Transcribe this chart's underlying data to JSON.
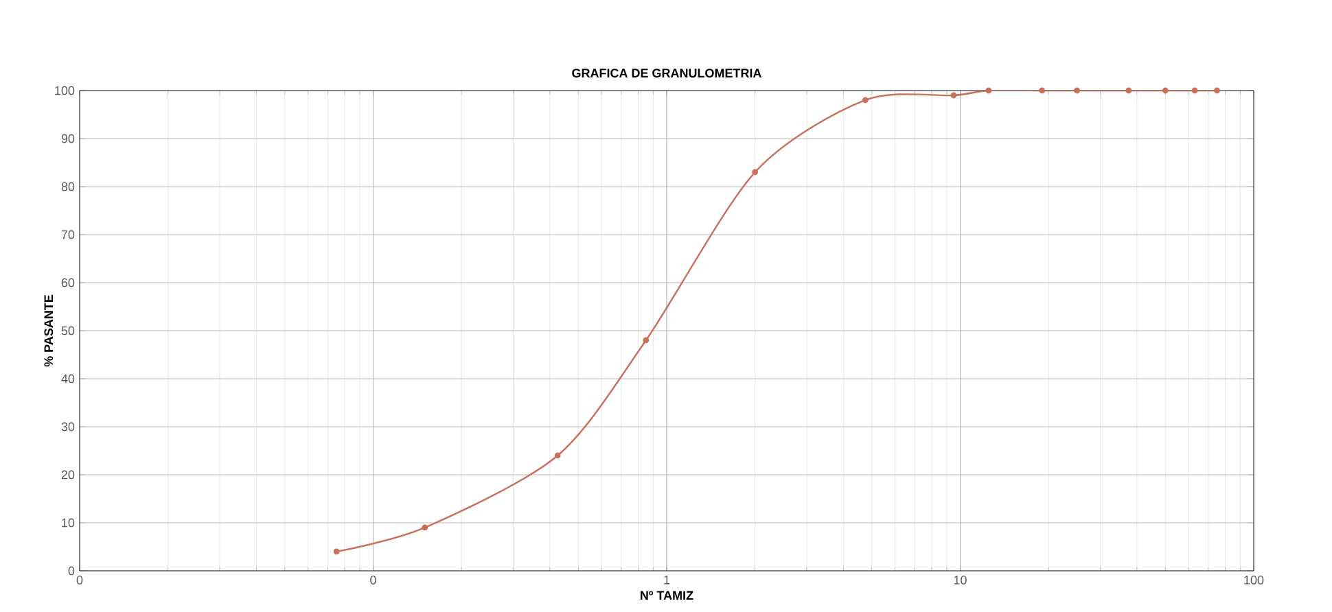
{
  "chart_data": {
    "type": "line",
    "title": "GRAFICA DE GRANULOMETRIA",
    "xlabel": "Nº TAMIZ",
    "ylabel": "% PASANTE",
    "log": "x",
    "grid": true,
    "marker": "circle",
    "line_style": "solid",
    "xlim": [
      0.01,
      100
    ],
    "ylim": [
      0,
      100
    ],
    "xticks": [
      {
        "value": 0.01,
        "label": "0"
      },
      {
        "value": 0.1,
        "label": "0"
      },
      1,
      10,
      100
    ],
    "yticks": [
      0,
      10,
      20,
      30,
      40,
      50,
      60,
      70,
      80,
      90,
      100
    ],
    "x": [
      0.075,
      0.15,
      0.425,
      0.85,
      2,
      4.75,
      9.5,
      12.5,
      19,
      25,
      37.5,
      50,
      63,
      75
    ],
    "series": [
      {
        "color": "#c8705a",
        "values": [
          4,
          9,
          24,
          48,
          83,
          98,
          99,
          100,
          100,
          100,
          100,
          100,
          100,
          100
        ]
      }
    ]
  }
}
